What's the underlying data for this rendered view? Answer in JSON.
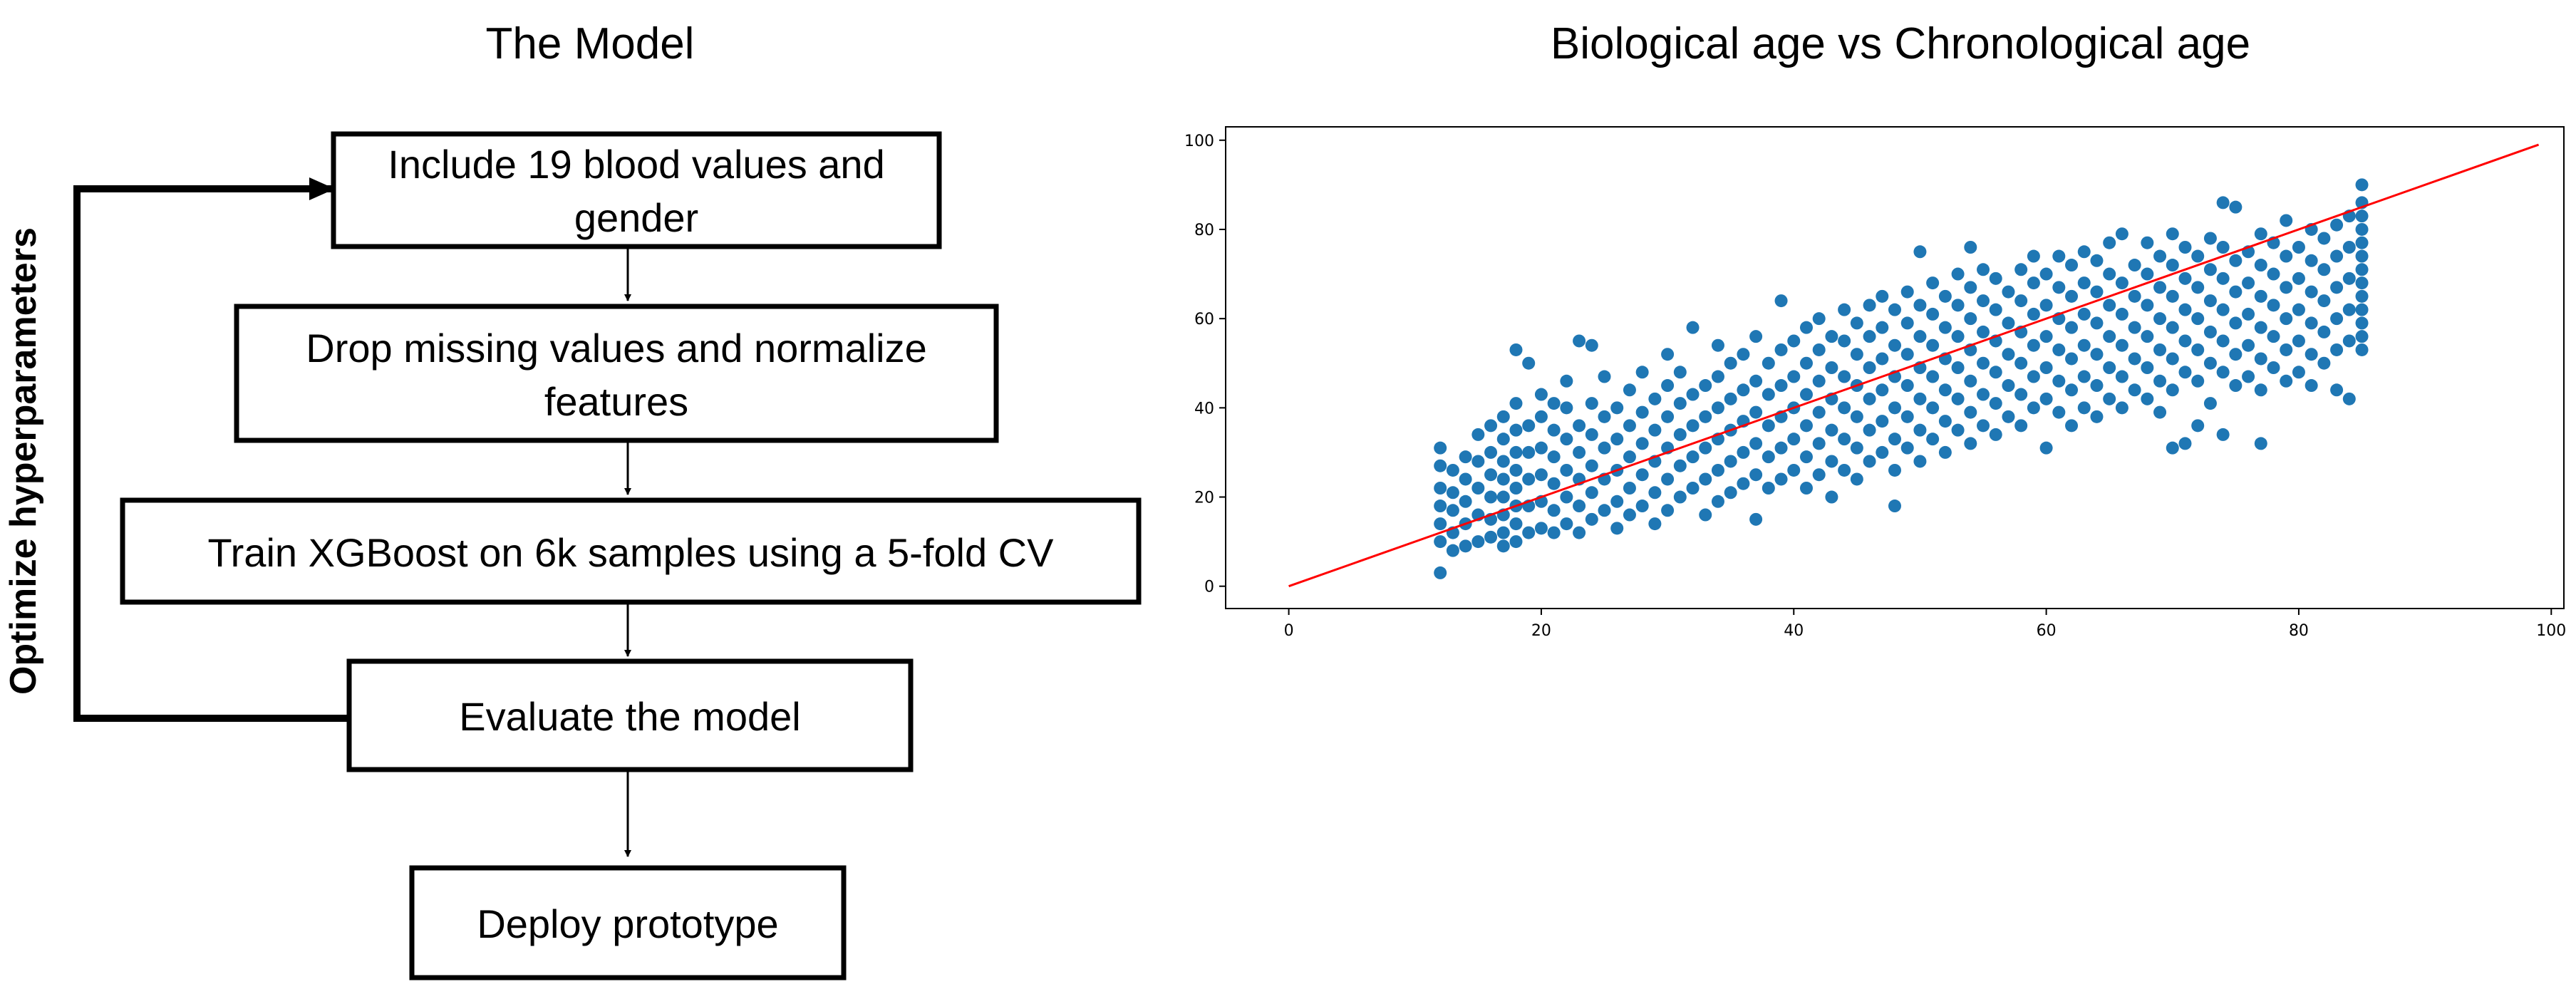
{
  "flowchart": {
    "title": "The Model",
    "side_label": "Optimize hyperparameters",
    "steps": [
      {
        "lines": [
          "Include 19 blood values and",
          "gender"
        ]
      },
      {
        "lines": [
          "Drop missing values and normalize",
          "features"
        ]
      },
      {
        "lines": [
          "Train XGBoost on 6k samples using a 5-fold CV"
        ]
      },
      {
        "lines": [
          "Evaluate the model"
        ]
      },
      {
        "lines": [
          "Deploy prototype"
        ]
      }
    ]
  },
  "chart_data": {
    "type": "scatter",
    "title": "Biological age vs Chronological age",
    "xlabel": "",
    "ylabel": "",
    "xlim": [
      -5,
      101
    ],
    "ylim": [
      -5,
      103
    ],
    "x_ticks": [
      "0",
      "20",
      "40",
      "60",
      "80",
      "100"
    ],
    "y_ticks": [
      "0",
      "20",
      "40",
      "60",
      "80",
      "100"
    ],
    "point_color": "#1f77b4",
    "line_color": "#ff0000",
    "reference_line": {
      "x": [
        0,
        99
      ],
      "y": [
        0,
        99
      ]
    },
    "x_range_of_points": [
      12,
      85
    ],
    "y_range_of_points": [
      3,
      90
    ],
    "grid": false,
    "points": [
      [
        12,
        3
      ],
      [
        12,
        10
      ],
      [
        12,
        14
      ],
      [
        12,
        18
      ],
      [
        12,
        22
      ],
      [
        12,
        27
      ],
      [
        12,
        31
      ],
      [
        13,
        8
      ],
      [
        13,
        12
      ],
      [
        13,
        17
      ],
      [
        13,
        21
      ],
      [
        13,
        26
      ],
      [
        14,
        9
      ],
      [
        14,
        14
      ],
      [
        14,
        19
      ],
      [
        14,
        24
      ],
      [
        14,
        29
      ],
      [
        15,
        10
      ],
      [
        15,
        16
      ],
      [
        15,
        22
      ],
      [
        15,
        28
      ],
      [
        15,
        34
      ],
      [
        16,
        11
      ],
      [
        16,
        15
      ],
      [
        16,
        20
      ],
      [
        16,
        25
      ],
      [
        16,
        30
      ],
      [
        16,
        36
      ],
      [
        17,
        9
      ],
      [
        17,
        12
      ],
      [
        17,
        16
      ],
      [
        17,
        20
      ],
      [
        17,
        24
      ],
      [
        17,
        28
      ],
      [
        17,
        33
      ],
      [
        17,
        38
      ],
      [
        18,
        10
      ],
      [
        18,
        14
      ],
      [
        18,
        18
      ],
      [
        18,
        22
      ],
      [
        18,
        26
      ],
      [
        18,
        30
      ],
      [
        18,
        35
      ],
      [
        18,
        41
      ],
      [
        18,
        53
      ],
      [
        19,
        12
      ],
      [
        19,
        18
      ],
      [
        19,
        24
      ],
      [
        19,
        30
      ],
      [
        19,
        36
      ],
      [
        19,
        50
      ],
      [
        20,
        13
      ],
      [
        20,
        19
      ],
      [
        20,
        25
      ],
      [
        20,
        31
      ],
      [
        20,
        38
      ],
      [
        20,
        43
      ],
      [
        21,
        12
      ],
      [
        21,
        17
      ],
      [
        21,
        23
      ],
      [
        21,
        29
      ],
      [
        21,
        35
      ],
      [
        21,
        41
      ],
      [
        22,
        14
      ],
      [
        22,
        20
      ],
      [
        22,
        26
      ],
      [
        22,
        33
      ],
      [
        22,
        40
      ],
      [
        22,
        46
      ],
      [
        23,
        12
      ],
      [
        23,
        18
      ],
      [
        23,
        24
      ],
      [
        23,
        30
      ],
      [
        23,
        36
      ],
      [
        23,
        55
      ],
      [
        24,
        15
      ],
      [
        24,
        21
      ],
      [
        24,
        27
      ],
      [
        24,
        34
      ],
      [
        24,
        41
      ],
      [
        24,
        54
      ],
      [
        25,
        17
      ],
      [
        25,
        24
      ],
      [
        25,
        31
      ],
      [
        25,
        38
      ],
      [
        25,
        47
      ],
      [
        26,
        13
      ],
      [
        26,
        19
      ],
      [
        26,
        26
      ],
      [
        26,
        33
      ],
      [
        26,
        40
      ],
      [
        27,
        16
      ],
      [
        27,
        22
      ],
      [
        27,
        29
      ],
      [
        27,
        36
      ],
      [
        27,
        44
      ],
      [
        28,
        18
      ],
      [
        28,
        25
      ],
      [
        28,
        32
      ],
      [
        28,
        39
      ],
      [
        28,
        48
      ],
      [
        29,
        14
      ],
      [
        29,
        21
      ],
      [
        29,
        28
      ],
      [
        29,
        35
      ],
      [
        29,
        42
      ],
      [
        30,
        17
      ],
      [
        30,
        24
      ],
      [
        30,
        31
      ],
      [
        30,
        38
      ],
      [
        30,
        45
      ],
      [
        30,
        52
      ],
      [
        31,
        20
      ],
      [
        31,
        27
      ],
      [
        31,
        34
      ],
      [
        31,
        41
      ],
      [
        31,
        48
      ],
      [
        32,
        22
      ],
      [
        32,
        29
      ],
      [
        32,
        36
      ],
      [
        32,
        43
      ],
      [
        32,
        58
      ],
      [
        33,
        16
      ],
      [
        33,
        24
      ],
      [
        33,
        31
      ],
      [
        33,
        38
      ],
      [
        33,
        45
      ],
      [
        34,
        19
      ],
      [
        34,
        26
      ],
      [
        34,
        33
      ],
      [
        34,
        40
      ],
      [
        34,
        47
      ],
      [
        34,
        54
      ],
      [
        35,
        21
      ],
      [
        35,
        28
      ],
      [
        35,
        35
      ],
      [
        35,
        42
      ],
      [
        35,
        50
      ],
      [
        36,
        23
      ],
      [
        36,
        30
      ],
      [
        36,
        37
      ],
      [
        36,
        44
      ],
      [
        36,
        52
      ],
      [
        37,
        15
      ],
      [
        37,
        25
      ],
      [
        37,
        32
      ],
      [
        37,
        39
      ],
      [
        37,
        46
      ],
      [
        37,
        56
      ],
      [
        38,
        22
      ],
      [
        38,
        29
      ],
      [
        38,
        36
      ],
      [
        38,
        43
      ],
      [
        38,
        50
      ],
      [
        39,
        24
      ],
      [
        39,
        31
      ],
      [
        39,
        38
      ],
      [
        39,
        45
      ],
      [
        39,
        53
      ],
      [
        39,
        64
      ],
      [
        40,
        26
      ],
      [
        40,
        33
      ],
      [
        40,
        40
      ],
      [
        40,
        47
      ],
      [
        40,
        55
      ],
      [
        41,
        22
      ],
      [
        41,
        29
      ],
      [
        41,
        36
      ],
      [
        41,
        43
      ],
      [
        41,
        50
      ],
      [
        41,
        58
      ],
      [
        42,
        25
      ],
      [
        42,
        32
      ],
      [
        42,
        39
      ],
      [
        42,
        46
      ],
      [
        42,
        53
      ],
      [
        42,
        60
      ],
      [
        43,
        20
      ],
      [
        43,
        28
      ],
      [
        43,
        35
      ],
      [
        43,
        42
      ],
      [
        43,
        49
      ],
      [
        43,
        56
      ],
      [
        44,
        26
      ],
      [
        44,
        33
      ],
      [
        44,
        40
      ],
      [
        44,
        47
      ],
      [
        44,
        55
      ],
      [
        44,
        62
      ],
      [
        45,
        24
      ],
      [
        45,
        31
      ],
      [
        45,
        38
      ],
      [
        45,
        45
      ],
      [
        45,
        52
      ],
      [
        45,
        59
      ],
      [
        46,
        28
      ],
      [
        46,
        35
      ],
      [
        46,
        42
      ],
      [
        46,
        49
      ],
      [
        46,
        56
      ],
      [
        46,
        63
      ],
      [
        47,
        30
      ],
      [
        47,
        37
      ],
      [
        47,
        44
      ],
      [
        47,
        51
      ],
      [
        47,
        58
      ],
      [
        47,
        65
      ],
      [
        48,
        18
      ],
      [
        48,
        26
      ],
      [
        48,
        33
      ],
      [
        48,
        40
      ],
      [
        48,
        47
      ],
      [
        48,
        54
      ],
      [
        48,
        62
      ],
      [
        49,
        31
      ],
      [
        49,
        38
      ],
      [
        49,
        45
      ],
      [
        49,
        52
      ],
      [
        49,
        59
      ],
      [
        49,
        66
      ],
      [
        50,
        28
      ],
      [
        50,
        35
      ],
      [
        50,
        42
      ],
      [
        50,
        49
      ],
      [
        50,
        56
      ],
      [
        50,
        63
      ],
      [
        50,
        75
      ],
      [
        51,
        33
      ],
      [
        51,
        40
      ],
      [
        51,
        47
      ],
      [
        51,
        54
      ],
      [
        51,
        61
      ],
      [
        51,
        68
      ],
      [
        52,
        30
      ],
      [
        52,
        37
      ],
      [
        52,
        44
      ],
      [
        52,
        51
      ],
      [
        52,
        58
      ],
      [
        52,
        65
      ],
      [
        53,
        35
      ],
      [
        53,
        42
      ],
      [
        53,
        49
      ],
      [
        53,
        56
      ],
      [
        53,
        63
      ],
      [
        53,
        70
      ],
      [
        54,
        32
      ],
      [
        54,
        39
      ],
      [
        54,
        46
      ],
      [
        54,
        53
      ],
      [
        54,
        60
      ],
      [
        54,
        67
      ],
      [
        54,
        76
      ],
      [
        55,
        36
      ],
      [
        55,
        43
      ],
      [
        55,
        50
      ],
      [
        55,
        57
      ],
      [
        55,
        64
      ],
      [
        55,
        71
      ],
      [
        56,
        34
      ],
      [
        56,
        41
      ],
      [
        56,
        48
      ],
      [
        56,
        55
      ],
      [
        56,
        62
      ],
      [
        56,
        69
      ],
      [
        57,
        38
      ],
      [
        57,
        45
      ],
      [
        57,
        52
      ],
      [
        57,
        59
      ],
      [
        57,
        66
      ],
      [
        58,
        36
      ],
      [
        58,
        43
      ],
      [
        58,
        50
      ],
      [
        58,
        57
      ],
      [
        58,
        64
      ],
      [
        58,
        71
      ],
      [
        59,
        40
      ],
      [
        59,
        47
      ],
      [
        59,
        54
      ],
      [
        59,
        61
      ],
      [
        59,
        68
      ],
      [
        59,
        74
      ],
      [
        60,
        31
      ],
      [
        60,
        42
      ],
      [
        60,
        49
      ],
      [
        60,
        56
      ],
      [
        60,
        63
      ],
      [
        60,
        70
      ],
      [
        61,
        39
      ],
      [
        61,
        46
      ],
      [
        61,
        53
      ],
      [
        61,
        60
      ],
      [
        61,
        67
      ],
      [
        61,
        74
      ],
      [
        62,
        36
      ],
      [
        62,
        44
      ],
      [
        62,
        51
      ],
      [
        62,
        58
      ],
      [
        62,
        65
      ],
      [
        62,
        72
      ],
      [
        63,
        40
      ],
      [
        63,
        47
      ],
      [
        63,
        54
      ],
      [
        63,
        61
      ],
      [
        63,
        68
      ],
      [
        63,
        75
      ],
      [
        64,
        38
      ],
      [
        64,
        45
      ],
      [
        64,
        52
      ],
      [
        64,
        59
      ],
      [
        64,
        66
      ],
      [
        64,
        73
      ],
      [
        65,
        42
      ],
      [
        65,
        49
      ],
      [
        65,
        56
      ],
      [
        65,
        63
      ],
      [
        65,
        70
      ],
      [
        65,
        77
      ],
      [
        66,
        40
      ],
      [
        66,
        47
      ],
      [
        66,
        54
      ],
      [
        66,
        61
      ],
      [
        66,
        68
      ],
      [
        66,
        79
      ],
      [
        67,
        44
      ],
      [
        67,
        51
      ],
      [
        67,
        58
      ],
      [
        67,
        65
      ],
      [
        67,
        72
      ],
      [
        68,
        42
      ],
      [
        68,
        49
      ],
      [
        68,
        56
      ],
      [
        68,
        63
      ],
      [
        68,
        70
      ],
      [
        68,
        77
      ],
      [
        69,
        39
      ],
      [
        69,
        46
      ],
      [
        69,
        53
      ],
      [
        69,
        60
      ],
      [
        69,
        67
      ],
      [
        69,
        74
      ],
      [
        70,
        31
      ],
      [
        70,
        44
      ],
      [
        70,
        51
      ],
      [
        70,
        58
      ],
      [
        70,
        65
      ],
      [
        70,
        72
      ],
      [
        70,
        79
      ],
      [
        71,
        32
      ],
      [
        71,
        48
      ],
      [
        71,
        55
      ],
      [
        71,
        62
      ],
      [
        71,
        69
      ],
      [
        71,
        76
      ],
      [
        72,
        36
      ],
      [
        72,
        46
      ],
      [
        72,
        53
      ],
      [
        72,
        60
      ],
      [
        72,
        67
      ],
      [
        72,
        74
      ],
      [
        73,
        41
      ],
      [
        73,
        50
      ],
      [
        73,
        57
      ],
      [
        73,
        64
      ],
      [
        73,
        71
      ],
      [
        73,
        78
      ],
      [
        74,
        34
      ],
      [
        74,
        48
      ],
      [
        74,
        55
      ],
      [
        74,
        62
      ],
      [
        74,
        69
      ],
      [
        74,
        76
      ],
      [
        74,
        86
      ],
      [
        75,
        45
      ],
      [
        75,
        52
      ],
      [
        75,
        59
      ],
      [
        75,
        66
      ],
      [
        75,
        73
      ],
      [
        75,
        85
      ],
      [
        76,
        47
      ],
      [
        76,
        54
      ],
      [
        76,
        61
      ],
      [
        76,
        68
      ],
      [
        76,
        75
      ],
      [
        77,
        32
      ],
      [
        77,
        44
      ],
      [
        77,
        51
      ],
      [
        77,
        58
      ],
      [
        77,
        65
      ],
      [
        77,
        72
      ],
      [
        77,
        79
      ],
      [
        78,
        49
      ],
      [
        78,
        56
      ],
      [
        78,
        63
      ],
      [
        78,
        70
      ],
      [
        78,
        77
      ],
      [
        79,
        46
      ],
      [
        79,
        53
      ],
      [
        79,
        60
      ],
      [
        79,
        67
      ],
      [
        79,
        74
      ],
      [
        79,
        82
      ],
      [
        80,
        48
      ],
      [
        80,
        55
      ],
      [
        80,
        62
      ],
      [
        80,
        69
      ],
      [
        80,
        76
      ],
      [
        81,
        45
      ],
      [
        81,
        52
      ],
      [
        81,
        59
      ],
      [
        81,
        66
      ],
      [
        81,
        73
      ],
      [
        81,
        80
      ],
      [
        82,
        50
      ],
      [
        82,
        57
      ],
      [
        82,
        64
      ],
      [
        82,
        71
      ],
      [
        82,
        78
      ],
      [
        83,
        44
      ],
      [
        83,
        53
      ],
      [
        83,
        60
      ],
      [
        83,
        67
      ],
      [
        83,
        74
      ],
      [
        83,
        81
      ],
      [
        84,
        42
      ],
      [
        84,
        55
      ],
      [
        84,
        62
      ],
      [
        84,
        69
      ],
      [
        84,
        76
      ],
      [
        84,
        83
      ],
      [
        85,
        53
      ],
      [
        85,
        56
      ],
      [
        85,
        59
      ],
      [
        85,
        62
      ],
      [
        85,
        65
      ],
      [
        85,
        68
      ],
      [
        85,
        71
      ],
      [
        85,
        74
      ],
      [
        85,
        77
      ],
      [
        85,
        80
      ],
      [
        85,
        83
      ],
      [
        85,
        86
      ],
      [
        85,
        90
      ]
    ]
  }
}
